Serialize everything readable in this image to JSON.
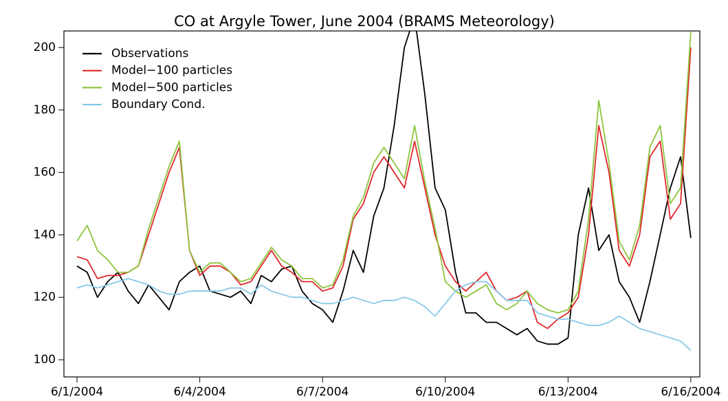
{
  "chart_data": {
    "type": "line",
    "title": "CO at Argyle Tower, June 2004 (BRAMS Meteorology)",
    "x": [
      1,
      1.25,
      1.5,
      1.75,
      2,
      2.25,
      2.5,
      2.75,
      3,
      3.25,
      3.5,
      3.75,
      4,
      4.25,
      4.5,
      4.75,
      5,
      5.25,
      5.5,
      5.75,
      6,
      6.25,
      6.5,
      6.75,
      7,
      7.25,
      7.5,
      7.75,
      8,
      8.25,
      8.5,
      8.75,
      9,
      9.25,
      9.5,
      9.75,
      10,
      10.25,
      10.5,
      10.75,
      11,
      11.25,
      11.5,
      11.75,
      12,
      12.25,
      12.5,
      12.75,
      13,
      13.25,
      13.5,
      13.75,
      14,
      14.25,
      14.5,
      14.75,
      15,
      15.25,
      15.5,
      15.75,
      16
    ],
    "series": [
      {
        "name": "Observations",
        "color": "#000000",
        "values": [
          130,
          128,
          120,
          125,
          128,
          122,
          118,
          124,
          120,
          116,
          125,
          128,
          130,
          122,
          121,
          120,
          122,
          118,
          127,
          125,
          129,
          130,
          122,
          118,
          116,
          112,
          122,
          135,
          128,
          146,
          155,
          175,
          200,
          210,
          185,
          155,
          148,
          128,
          115,
          115,
          112,
          112,
          110,
          108,
          110,
          106,
          105,
          105,
          107,
          140,
          155,
          135,
          140,
          125,
          120,
          112,
          125,
          140,
          155,
          165,
          139
        ]
      },
      {
        "name": "Model−100 particles",
        "color": "#e0262a",
        "values": [
          133,
          132,
          126,
          127,
          127,
          128,
          130,
          140,
          150,
          160,
          168,
          135,
          127,
          130,
          130,
          128,
          124,
          125,
          130,
          135,
          130,
          128,
          125,
          125,
          122,
          123,
          130,
          145,
          150,
          160,
          165,
          160,
          155,
          170,
          155,
          140,
          130,
          125,
          122,
          125,
          128,
          122,
          119,
          120,
          122,
          112,
          110,
          113,
          115,
          120,
          140,
          175,
          160,
          135,
          130,
          140,
          165,
          170,
          145,
          150,
          200
        ]
      },
      {
        "name": "Model−500 particles",
        "color": "#8cc43c",
        "values": [
          138,
          143,
          135,
          132,
          128,
          128,
          130,
          142,
          152,
          162,
          170,
          135,
          128,
          131,
          131,
          128,
          125,
          126,
          131,
          136,
          132,
          130,
          126,
          126,
          123,
          124,
          132,
          146,
          152,
          163,
          168,
          163,
          158,
          175,
          157,
          142,
          125,
          122,
          120,
          122,
          124,
          118,
          116,
          118,
          122,
          118,
          116,
          115,
          116,
          122,
          145,
          183,
          163,
          138,
          132,
          143,
          168,
          175,
          150,
          155,
          205
        ]
      },
      {
        "name": "Boundary Cond.",
        "color": "#87c8e6",
        "values": [
          123,
          124,
          123,
          124,
          125,
          126,
          125,
          124,
          122,
          121,
          121,
          122,
          122,
          122,
          122,
          123,
          123,
          121,
          124,
          122,
          121,
          120,
          120,
          119,
          118,
          118,
          119,
          120,
          119,
          118,
          119,
          119,
          120,
          119,
          117,
          114,
          118,
          122,
          124,
          125,
          125,
          122,
          119,
          119,
          119,
          115,
          114,
          113,
          113,
          112,
          111,
          111,
          112,
          114,
          112,
          110,
          109,
          108,
          107,
          106,
          103
        ]
      }
    ],
    "xlim": [
      0.68,
      16.22
    ],
    "xticks": [
      {
        "value": 1,
        "label": "6/1/2004"
      },
      {
        "value": 4,
        "label": "6/4/2004"
      },
      {
        "value": 7,
        "label": "6/7/2004"
      },
      {
        "value": 10,
        "label": "6/10/2004"
      },
      {
        "value": 13,
        "label": "6/13/2004"
      },
      {
        "value": 16,
        "label": "6/16/2004"
      }
    ],
    "ylim": [
      94.5,
      205.3
    ],
    "yticks": [
      100,
      120,
      140,
      160,
      180,
      200
    ],
    "legend": "top-left"
  }
}
